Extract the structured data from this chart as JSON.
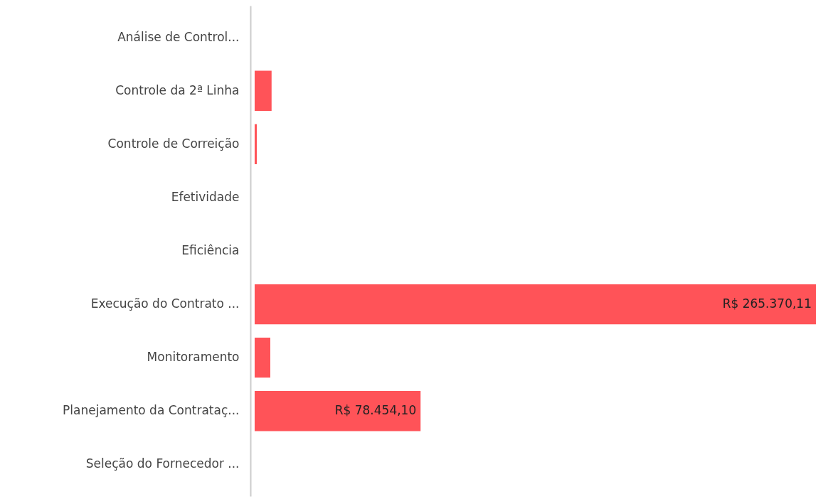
{
  "chart_data": {
    "type": "bar",
    "orientation": "horizontal",
    "categories": [
      "Análise de Control...",
      "Controle da 2ª Linha",
      "Controle de Correição",
      "Efetividade",
      "Eficiência",
      "Execução do Contrato ...",
      "Monitoramento",
      "Planejamento da Contrataç...",
      "Seleção do Fornecedor ..."
    ],
    "series": [
      {
        "color": "#ff5358",
        "values": [
          0,
          8000,
          1000,
          0,
          0,
          265370.11,
          7400,
          78454.1,
          0
        ],
        "value_labels": [
          null,
          null,
          null,
          null,
          null,
          "R$ 265.370,11",
          null,
          "R$ 78.454,10",
          null
        ]
      }
    ],
    "data_labels": false
  }
}
